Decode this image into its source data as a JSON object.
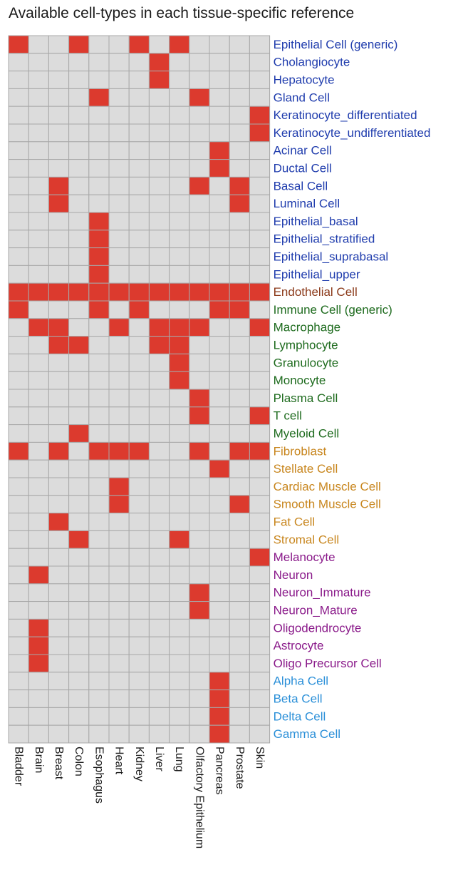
{
  "chart_data": {
    "type": "heatmap",
    "title": "Available cell-types in each tissue-specific reference",
    "tissues": [
      "Bladder",
      "Brain",
      "Breast",
      "Colon",
      "Esophagus",
      "Heart",
      "Kidney",
      "Liver",
      "Lung",
      "Olfactory Epithelium",
      "Pancreas",
      "Prostate",
      "Skin"
    ],
    "cell_types": [
      "Epithelial Cell (generic)",
      "Cholangiocyte",
      "Hepatocyte",
      "Gland Cell",
      "Keratinocyte_differentiated",
      "Keratinocyte_undifferentiated",
      "Acinar Cell",
      "Ductal Cell",
      "Basal Cell",
      "Luminal Cell",
      "Epithelial_basal",
      "Epithelial_stratified",
      "Epithelial_suprabasal",
      "Epithelial_upper",
      "Endothelial Cell",
      "Immune Cell (generic)",
      "Macrophage",
      "Lymphocyte",
      "Granulocyte",
      "Monocyte",
      "Plasma Cell",
      "T cell",
      "Myeloid Cell",
      "Fibroblast",
      "Stellate Cell",
      "Cardiac Muscle Cell",
      "Smooth Muscle Cell",
      "Fat Cell",
      "Stromal Cell",
      "Melanocyte",
      "Neuron",
      "Neuron_Immature",
      "Neuron_Mature",
      "Oligodendrocyte",
      "Astrocyte",
      "Oligo Precursor Cell",
      "Alpha Cell",
      "Beta Cell",
      "Delta Cell",
      "Gamma Cell"
    ],
    "label_colors": [
      "#1f3cad",
      "#1f3cad",
      "#1f3cad",
      "#1f3cad",
      "#1f3cad",
      "#1f3cad",
      "#1f3cad",
      "#1f3cad",
      "#1f3cad",
      "#1f3cad",
      "#1f3cad",
      "#1f3cad",
      "#1f3cad",
      "#1f3cad",
      "#8b3a1a",
      "#1e6b1e",
      "#1e6b1e",
      "#1e6b1e",
      "#1e6b1e",
      "#1e6b1e",
      "#1e6b1e",
      "#1e6b1e",
      "#1e6b1e",
      "#c8861e",
      "#c8861e",
      "#c8861e",
      "#c8861e",
      "#c8861e",
      "#c8861e",
      "#8a1a8a",
      "#8a1a8a",
      "#8a1a8a",
      "#8a1a8a",
      "#8a1a8a",
      "#8a1a8a",
      "#8a1a8a",
      "#2a8fd8",
      "#2a8fd8",
      "#2a8fd8",
      "#2a8fd8"
    ],
    "available_color": "#dc3a2e",
    "unavailable_color": "#dcdcdc",
    "grid_color": "#a8a8a8",
    "matrix": [
      [
        1,
        0,
        0,
        1,
        0,
        0,
        1,
        0,
        1,
        0,
        0,
        0,
        0
      ],
      [
        0,
        0,
        0,
        0,
        0,
        0,
        0,
        1,
        0,
        0,
        0,
        0,
        0
      ],
      [
        0,
        0,
        0,
        0,
        0,
        0,
        0,
        1,
        0,
        0,
        0,
        0,
        0
      ],
      [
        0,
        0,
        0,
        0,
        1,
        0,
        0,
        0,
        0,
        1,
        0,
        0,
        0
      ],
      [
        0,
        0,
        0,
        0,
        0,
        0,
        0,
        0,
        0,
        0,
        0,
        0,
        1
      ],
      [
        0,
        0,
        0,
        0,
        0,
        0,
        0,
        0,
        0,
        0,
        0,
        0,
        1
      ],
      [
        0,
        0,
        0,
        0,
        0,
        0,
        0,
        0,
        0,
        0,
        1,
        0,
        0
      ],
      [
        0,
        0,
        0,
        0,
        0,
        0,
        0,
        0,
        0,
        0,
        1,
        0,
        0
      ],
      [
        0,
        0,
        1,
        0,
        0,
        0,
        0,
        0,
        0,
        1,
        0,
        1,
        0
      ],
      [
        0,
        0,
        1,
        0,
        0,
        0,
        0,
        0,
        0,
        0,
        0,
        1,
        0
      ],
      [
        0,
        0,
        0,
        0,
        1,
        0,
        0,
        0,
        0,
        0,
        0,
        0,
        0
      ],
      [
        0,
        0,
        0,
        0,
        1,
        0,
        0,
        0,
        0,
        0,
        0,
        0,
        0
      ],
      [
        0,
        0,
        0,
        0,
        1,
        0,
        0,
        0,
        0,
        0,
        0,
        0,
        0
      ],
      [
        0,
        0,
        0,
        0,
        1,
        0,
        0,
        0,
        0,
        0,
        0,
        0,
        0
      ],
      [
        1,
        1,
        1,
        1,
        1,
        1,
        1,
        1,
        1,
        1,
        1,
        1,
        1
      ],
      [
        1,
        0,
        0,
        0,
        1,
        0,
        1,
        0,
        0,
        0,
        1,
        1,
        0
      ],
      [
        0,
        1,
        1,
        0,
        0,
        1,
        0,
        1,
        1,
        1,
        0,
        0,
        1
      ],
      [
        0,
        0,
        1,
        1,
        0,
        0,
        0,
        1,
        1,
        0,
        0,
        0,
        0
      ],
      [
        0,
        0,
        0,
        0,
        0,
        0,
        0,
        0,
        1,
        0,
        0,
        0,
        0
      ],
      [
        0,
        0,
        0,
        0,
        0,
        0,
        0,
        0,
        1,
        0,
        0,
        0,
        0
      ],
      [
        0,
        0,
        0,
        0,
        0,
        0,
        0,
        0,
        0,
        1,
        0,
        0,
        0
      ],
      [
        0,
        0,
        0,
        0,
        0,
        0,
        0,
        0,
        0,
        1,
        0,
        0,
        1
      ],
      [
        0,
        0,
        0,
        1,
        0,
        0,
        0,
        0,
        0,
        0,
        0,
        0,
        0
      ],
      [
        1,
        0,
        1,
        0,
        1,
        1,
        1,
        0,
        0,
        1,
        0,
        1,
        1
      ],
      [
        0,
        0,
        0,
        0,
        0,
        0,
        0,
        0,
        0,
        0,
        1,
        0,
        0
      ],
      [
        0,
        0,
        0,
        0,
        0,
        1,
        0,
        0,
        0,
        0,
        0,
        0,
        0
      ],
      [
        0,
        0,
        0,
        0,
        0,
        1,
        0,
        0,
        0,
        0,
        0,
        1,
        0
      ],
      [
        0,
        0,
        1,
        0,
        0,
        0,
        0,
        0,
        0,
        0,
        0,
        0,
        0
      ],
      [
        0,
        0,
        0,
        1,
        0,
        0,
        0,
        0,
        1,
        0,
        0,
        0,
        0
      ],
      [
        0,
        0,
        0,
        0,
        0,
        0,
        0,
        0,
        0,
        0,
        0,
        0,
        1
      ],
      [
        0,
        1,
        0,
        0,
        0,
        0,
        0,
        0,
        0,
        0,
        0,
        0,
        0
      ],
      [
        0,
        0,
        0,
        0,
        0,
        0,
        0,
        0,
        0,
        1,
        0,
        0,
        0
      ],
      [
        0,
        0,
        0,
        0,
        0,
        0,
        0,
        0,
        0,
        1,
        0,
        0,
        0
      ],
      [
        0,
        1,
        0,
        0,
        0,
        0,
        0,
        0,
        0,
        0,
        0,
        0,
        0
      ],
      [
        0,
        1,
        0,
        0,
        0,
        0,
        0,
        0,
        0,
        0,
        0,
        0,
        0
      ],
      [
        0,
        1,
        0,
        0,
        0,
        0,
        0,
        0,
        0,
        0,
        0,
        0,
        0
      ],
      [
        0,
        0,
        0,
        0,
        0,
        0,
        0,
        0,
        0,
        0,
        1,
        0,
        0
      ],
      [
        0,
        0,
        0,
        0,
        0,
        0,
        0,
        0,
        0,
        0,
        1,
        0,
        0
      ],
      [
        0,
        0,
        0,
        0,
        0,
        0,
        0,
        0,
        0,
        0,
        1,
        0,
        0
      ],
      [
        0,
        0,
        0,
        0,
        0,
        0,
        0,
        0,
        0,
        0,
        1,
        0,
        0
      ]
    ]
  }
}
